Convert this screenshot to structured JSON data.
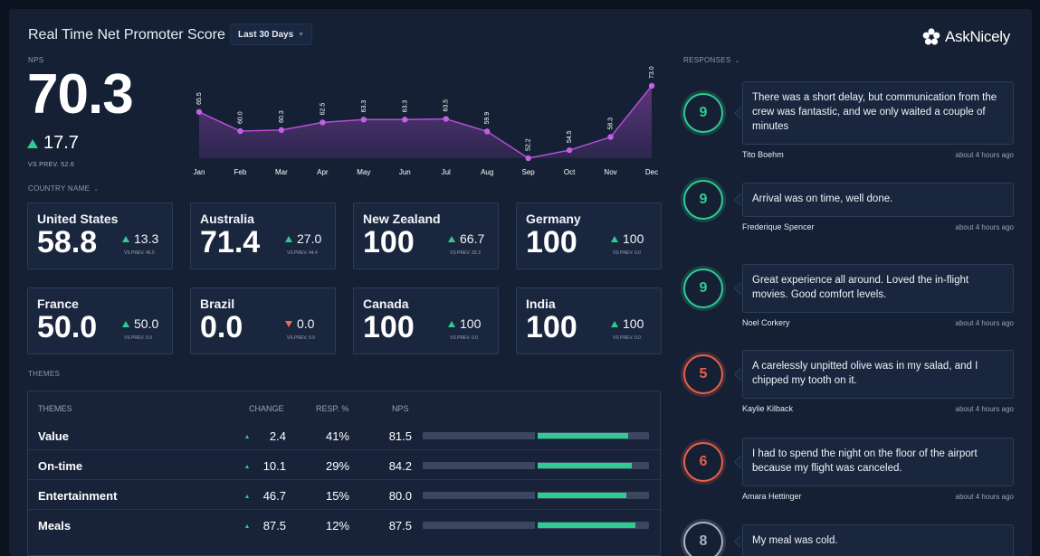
{
  "header": {
    "title": "Real Time Net Promoter Score",
    "range_label": "Last 30 Days",
    "logo_text": "AskNicely"
  },
  "nps": {
    "label": "NPS",
    "score": "70.3",
    "change": "17.7",
    "vs_prev": "VS PREV. 52.6"
  },
  "chart_data": {
    "type": "area",
    "categories": [
      "Jan",
      "Feb",
      "Mar",
      "Apr",
      "May",
      "Jun",
      "Jul",
      "Aug",
      "Sep",
      "Oct",
      "Nov",
      "Dec"
    ],
    "values": [
      65.5,
      60.0,
      60.3,
      62.5,
      63.3,
      63.3,
      63.5,
      59.9,
      52.2,
      54.5,
      58.3,
      73.0
    ],
    "value_labels": [
      "65.5",
      "60.0",
      "60.3",
      "62.5",
      "63.3",
      "63.3",
      "63.5",
      "59.9",
      "52.2",
      "54.5",
      "58.3",
      "73.0"
    ],
    "ylim": [
      52.2,
      73.0
    ],
    "color": "#b44fd6",
    "grid": false
  },
  "countries": {
    "label": "COUNTRY NAME",
    "items": [
      {
        "name": "United States",
        "score": "58.8",
        "change": "13.3",
        "dir": "up",
        "vs": "VS PREV. 45.5"
      },
      {
        "name": "Australia",
        "score": "71.4",
        "change": "27.0",
        "dir": "up",
        "vs": "VS PREV. 44.4"
      },
      {
        "name": "New Zealand",
        "score": "100",
        "change": "66.7",
        "dir": "up",
        "vs": "VS PREV. 33.3"
      },
      {
        "name": "Germany",
        "score": "100",
        "change": "100",
        "dir": "up",
        "vs": "VS PREV. 0.0"
      },
      {
        "name": "France",
        "score": "50.0",
        "change": "50.0",
        "dir": "up",
        "vs": "VS PREV. 0.0"
      },
      {
        "name": "Brazil",
        "score": "0.0",
        "change": "0.0",
        "dir": "down",
        "vs": "VS PREV. 0.0"
      },
      {
        "name": "Canada",
        "score": "100",
        "change": "100",
        "dir": "up",
        "vs": "VS PREV. 0.0"
      },
      {
        "name": "India",
        "score": "100",
        "change": "100",
        "dir": "up",
        "vs": "VS PREV. 0.0"
      }
    ]
  },
  "themes": {
    "label": "THEMES",
    "columns": {
      "theme": "THEMES",
      "change": "CHANGE",
      "resp": "RESP. %",
      "nps": "NPS"
    },
    "rows": [
      {
        "name": "Value",
        "change": "2.4",
        "resp": "41%",
        "nps": "81.5",
        "nps_value": 81.5
      },
      {
        "name": "On-time",
        "change": "10.1",
        "resp": "29%",
        "nps": "84.2",
        "nps_value": 84.2
      },
      {
        "name": "Entertainment",
        "change": "46.7",
        "resp": "15%",
        "nps": "80.0",
        "nps_value": 80.0
      },
      {
        "name": "Meals",
        "change": "87.5",
        "resp": "12%",
        "nps": "87.5",
        "nps_value": 87.5
      }
    ]
  },
  "responses": {
    "label": "RESPONSES",
    "items": [
      {
        "score": "9",
        "color": "#2ecc8f",
        "text": "There was a short delay, but communication from the crew was fantastic, and we only waited a couple of minutes",
        "author": "Tito Boehm",
        "time": "about 4 hours ago"
      },
      {
        "score": "9",
        "color": "#2ecc8f",
        "text": "Arrival was on time, well done.",
        "author": "Frederique Spencer",
        "time": "about 4 hours ago"
      },
      {
        "score": "9",
        "color": "#2ecc8f",
        "text": "Great experience all around. Loved the in-flight movies. Good comfort levels.",
        "author": "Noel Corkery",
        "time": "about 4 hours ago"
      },
      {
        "score": "5",
        "color": "#e8604a",
        "text": "A carelessly unpitted olive was in my salad, and I chipped my tooth on it.",
        "author": "Kaylie Kilback",
        "time": "about 4 hours ago"
      },
      {
        "score": "6",
        "color": "#e8604a",
        "text": "I had to spend the night on the floor of the airport because my flight was canceled.",
        "author": "Amara Hettinger",
        "time": "about 4 hours ago"
      },
      {
        "score": "8",
        "color": "#aab1bf",
        "text": "My meal was cold.",
        "author": "",
        "time": ""
      }
    ]
  }
}
